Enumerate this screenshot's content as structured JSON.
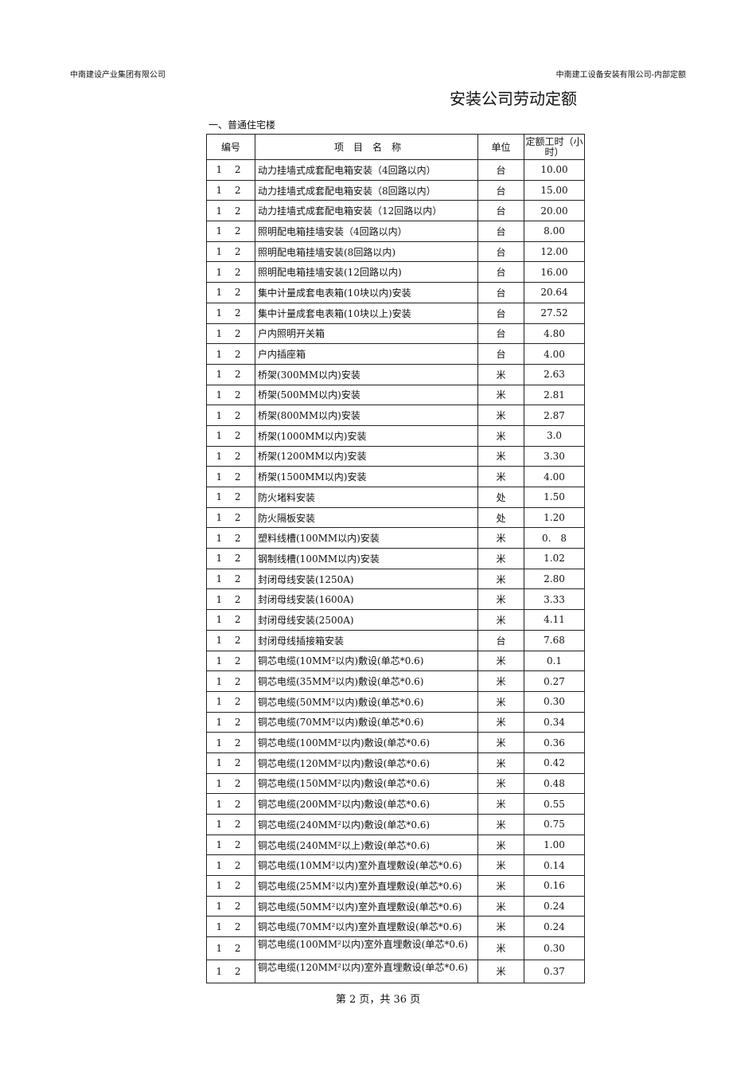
{
  "header": {
    "left": "中南建设产业集团有限公司",
    "right": "中南建工设备安装有限公司-内部定额"
  },
  "title": "安装公司劳动定额",
  "section": "一、普通住宅楼",
  "table": {
    "columns": [
      "编号",
      "项　目　名　称",
      "单位",
      "定额工时（小时）"
    ],
    "rows": [
      [
        "1 2",
        "动力挂墙式成套配电箱安装（4回路以内）",
        "台",
        "10.00"
      ],
      [
        "1 2",
        "动力挂墙式成套配电箱安装（8回路以内）",
        "台",
        "15.00"
      ],
      [
        "1 2",
        "动力挂墙式成套配电箱安装（12回路以内）",
        "台",
        "20.00"
      ],
      [
        "1 2",
        "照明配电箱挂墙安装（4回路以内）",
        "台",
        "8.00"
      ],
      [
        "1 2",
        "照明配电箱挂墙安装(8回路以内)",
        "台",
        "12.00"
      ],
      [
        "1 2",
        "照明配电箱挂墙安装(12回路以内)",
        "台",
        "16.00"
      ],
      [
        "1 2",
        "集中计量成套电表箱(10块以内)安装",
        "台",
        "20.64"
      ],
      [
        "1 2",
        "集中计量成套电表箱(10块以上)安装",
        "台",
        "27.52"
      ],
      [
        "1 2",
        "户内照明开关箱",
        "台",
        "4.80"
      ],
      [
        "1 2",
        "户内插座箱",
        "台",
        "4.00"
      ],
      [
        "1 2",
        "桥架(300MM以内)安装",
        "米",
        "2.63"
      ],
      [
        "1 2",
        "桥架(500MM以内)安装",
        "米",
        "2.81"
      ],
      [
        "1 2",
        "桥架(800MM以内)安装",
        "米",
        "2.87"
      ],
      [
        "1 2",
        "桥架(1000MM以内)安装",
        "米",
        "3.0"
      ],
      [
        "1 2",
        "桥架(1200MM以内)安装",
        "米",
        "3.30"
      ],
      [
        "1 2",
        "桥架(1500MM以内)安装",
        "米",
        "4.00"
      ],
      [
        "1 2",
        "防火堵料安装",
        "处",
        "1.50"
      ],
      [
        "1 2",
        "防火隔板安装",
        "处",
        "1.20"
      ],
      [
        "1 2",
        "塑料线槽(100MM以内)安装",
        "米",
        "0.　8"
      ],
      [
        "1 2",
        "钢制线槽(100MM以内)安装",
        "米",
        "1.02"
      ],
      [
        "1 2",
        "封闭母线安装(1250A)",
        "米",
        "2.80"
      ],
      [
        "1 2",
        "封闭母线安装(1600A)",
        "米",
        "3.33"
      ],
      [
        "1 2",
        "封闭母线安装(2500A)",
        "米",
        "4.11"
      ],
      [
        "1 2",
        "封闭母线插接箱安装",
        "台",
        "7.68"
      ],
      [
        "1 2",
        "铜芯电缆(10MM²以内)敷设(单芯*0.6)",
        "米",
        "0.1"
      ],
      [
        "1 2",
        "铜芯电缆(35MM²以内)敷设(单芯*0.6)",
        "米",
        "0.27"
      ],
      [
        "1 2",
        "铜芯电缆(50MM²以内)敷设(单芯*0.6)",
        "米",
        "0.30"
      ],
      [
        "1 2",
        "铜芯电缆(70MM²以内)敷设(单芯*0.6)",
        "米",
        "0.34"
      ],
      [
        "1 2",
        "铜芯电缆(100MM²以内)敷设(单芯*0.6)",
        "米",
        "0.36"
      ],
      [
        "1 2",
        "铜芯电缆(120MM²以内)敷设(单芯*0.6)",
        "米",
        "0.42"
      ],
      [
        "1 2",
        "铜芯电缆(150MM²以内)敷设(单芯*0.6)",
        "米",
        "0.48"
      ],
      [
        "1 2",
        "铜芯电缆(200MM²以内)敷设(单芯*0.6)",
        "米",
        "0.55"
      ],
      [
        "1 2",
        "铜芯电缆(240MM²以内)敷设(单芯*0.6)",
        "米",
        "0.75"
      ],
      [
        "1 2",
        "铜芯电缆(240MM²以上)敷设(单芯*0.6)",
        "米",
        "1.00"
      ],
      [
        "1 2",
        "铜芯电缆(10MM²以内)室外直埋敷设(单芯*0.6)",
        "米",
        "0.14"
      ],
      [
        "1 2",
        "铜芯电缆(25MM²以内)室外直埋敷设(单芯*0.6)",
        "米",
        "0.16"
      ],
      [
        "1 2",
        "铜芯电缆(50MM²以内)室外直埋敷设(单芯*0.6)",
        "米",
        "0.24"
      ],
      [
        "1 2",
        "铜芯电缆(70MM²以内)室外直埋敷设(单芯*0.6)",
        "米",
        "0.24"
      ],
      [
        "1 2",
        "铜芯电缆(100MM²以内)室外直埋敷设(单芯*0.6)",
        "米",
        "0.30"
      ],
      [
        "1 2",
        "铜芯电缆(120MM²以内)室外直埋敷设(单芯*0.6)",
        "米",
        "0.37"
      ]
    ]
  },
  "footer": "第 2 页，共 36 页"
}
